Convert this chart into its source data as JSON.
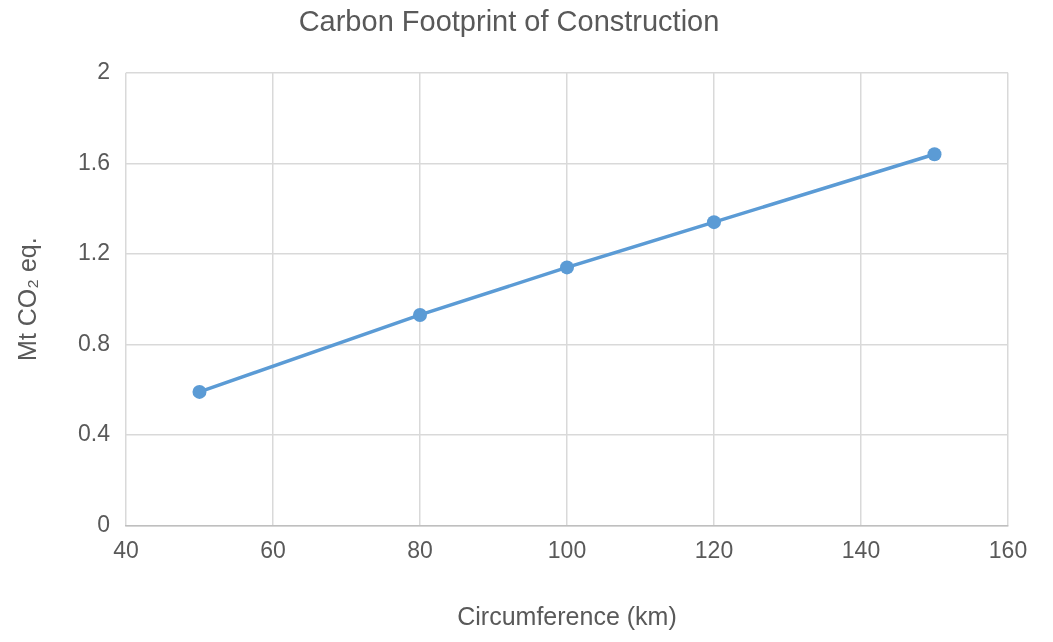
{
  "chart_data": {
    "type": "line",
    "title": "Carbon Footprint of Construction",
    "xlabel": "Circumference (km)",
    "ylabel": "Mt CO₂ eq.",
    "x": [
      50,
      80,
      100,
      120,
      150
    ],
    "series": [
      {
        "color": "#5b9bd5",
        "values": [
          0.59,
          0.93,
          1.14,
          1.34,
          1.64
        ]
      }
    ],
    "xlim": [
      40,
      160
    ],
    "xticks": [
      40,
      60,
      80,
      100,
      120,
      140,
      160
    ],
    "ylim": [
      0,
      2
    ],
    "yticks": [
      0,
      0.4,
      0.8,
      1.2,
      1.6,
      2
    ],
    "grid": true,
    "legend": false,
    "marker": "circle",
    "line_style": "solid"
  }
}
